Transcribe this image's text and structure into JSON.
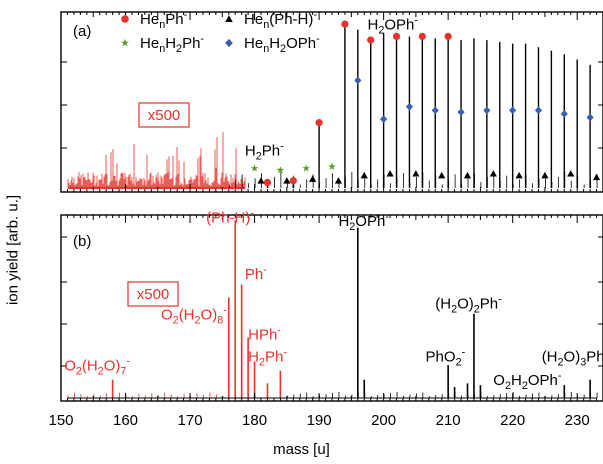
{
  "chart_data": {
    "type": "bar",
    "xlabel": "mass [u]",
    "ylabel": "ion yield [arb. u.]",
    "xlim": [
      150,
      234
    ],
    "x_ticks": [
      "150",
      "160",
      "170",
      "180",
      "190",
      "200",
      "210",
      "220",
      "230"
    ],
    "panels": [
      {
        "label": "(a)",
        "scale_box": {
          "text": "x500",
          "color": "#e8322b"
        },
        "legend": [
          {
            "text": "He",
            "sub": "n",
            "tail": "Ph",
            "sup": "-",
            "marker": "circle",
            "color": "#e8322b"
          },
          {
            "text": "He",
            "sub": "n",
            "tail": "(Ph-H)",
            "sup": "-",
            "marker": "triangle",
            "color": "#000000"
          },
          {
            "text": "He",
            "sub": "n",
            "tail": "H",
            "sub2": "2",
            "tail2": "Ph",
            "sup": "-",
            "marker": "star",
            "color": "#5aa02c"
          },
          {
            "text": "He",
            "sub": "n",
            "tail": "H",
            "sub2": "2",
            "tail2": "OPh",
            "sup": "-",
            "marker": "diamond",
            "color": "#3a5fb4"
          }
        ],
        "annotations": [
          {
            "text": "H",
            "sub": "2",
            "tail": "OPh",
            "sup": "-",
            "x": 197.5,
            "y": 0.9
          },
          {
            "text": "H",
            "sub": "2",
            "tail": "Ph",
            "sup": "-",
            "x": 178.5,
            "y": 0.185
          }
        ],
        "series": [
          {
            "marker": "circle",
            "color": "#e8322b",
            "x": [
              182,
              186,
              190,
              194,
              198,
              202,
              206,
              210
            ],
            "y": [
              0.02,
              0.03,
              0.36,
              0.92,
              0.83,
              0.85,
              0.85,
              0.85
            ]
          },
          {
            "marker": "triangle",
            "color": "#000000",
            "x": [
              181,
              185,
              189,
              193,
              197,
              201,
              205,
              209,
              213,
              217,
              221,
              225,
              229,
              233
            ],
            "y": [
              0.03,
              0.03,
              0.04,
              0.03,
              0.06,
              0.07,
              0.07,
              0.06,
              0.06,
              0.07,
              0.06,
              0.06,
              0.07,
              0.05
            ]
          },
          {
            "marker": "star",
            "color": "#5aa02c",
            "x": [
              180,
              184,
              188,
              192
            ],
            "y": [
              0.1,
              0.09,
              0.1,
              0.11
            ]
          },
          {
            "marker": "diamond",
            "color": "#3a5fb4",
            "x": [
              196,
              200,
              204,
              208,
              212,
              216,
              220,
              224,
              228,
              232
            ],
            "y": [
              0.6,
              0.38,
              0.45,
              0.43,
              0.42,
              0.43,
              0.43,
              0.43,
              0.41,
              0.39
            ]
          }
        ],
        "sticks": {
          "x": [
            194,
            196,
            198,
            200,
            202,
            204,
            206,
            208,
            210,
            212,
            214,
            216,
            218,
            220,
            222,
            224,
            226,
            228,
            230,
            232,
            190,
            186,
            182
          ],
          "y": [
            0.92,
            0.9,
            0.83,
            0.88,
            0.85,
            0.86,
            0.85,
            0.85,
            0.85,
            0.84,
            0.85,
            0.84,
            0.83,
            0.82,
            0.82,
            0.8,
            0.78,
            0.76,
            0.73,
            0.7,
            0.36,
            0.04,
            0.02
          ]
        }
      },
      {
        "label": "(b)",
        "scale_box": {
          "text": "x500",
          "color": "#e8322b"
        },
        "annotations": [
          {
            "text": "(Ph-H)",
            "sup": "-",
            "color": "#e8322b",
            "x": 172.5,
            "y": 0.96
          },
          {
            "text": "Ph",
            "sup": "-",
            "color": "#e8322b",
            "x": 178.5,
            "y": 0.65
          },
          {
            "text": "O",
            "sub": "2",
            "tail": "(H",
            "sub2": "2",
            "tail2": "O)",
            "sub3": "8",
            "sup": "-",
            "color": "#e8322b",
            "x": 165.5,
            "y": 0.43
          },
          {
            "text": "HPh",
            "sup": "-",
            "color": "#e8322b",
            "x": 179,
            "y": 0.32
          },
          {
            "text": "H",
            "sub": "2",
            "tail": "Ph",
            "sup": "-",
            "color": "#e8322b",
            "x": 179,
            "y": 0.2
          },
          {
            "text": "O",
            "sub": "2",
            "tail": "(H",
            "sub2": "2",
            "tail2": "O)",
            "sub3": "7",
            "sup": "-",
            "color": "#e8322b",
            "x": 150.5,
            "y": 0.15
          },
          {
            "text": "H",
            "sub": "2",
            "tail": "OPh",
            "sup": "-",
            "color": "#000000",
            "x": 193,
            "y": 0.94
          },
          {
            "text": "(H",
            "sub": "2",
            "tail": "O)",
            "sub2": "2",
            "tail2": "Ph",
            "sup": "-",
            "color": "#000000",
            "x": 208,
            "y": 0.49
          },
          {
            "text": "PhO",
            "sub": "2",
            "sup": "-",
            "color": "#000000",
            "x": 206.5,
            "y": 0.2
          },
          {
            "text": "O",
            "sub": "2",
            "tail": "H",
            "sub2": "2",
            "tail2": "OPh",
            "sup": "-",
            "color": "#000000",
            "x": 217,
            "y": 0.07
          },
          {
            "text": "(H",
            "sub": "2",
            "tail": "O)",
            "sub2": "3",
            "tail2": "Ph",
            "color": "#000000",
            "x": 224.5,
            "y": 0.2
          }
        ],
        "red_sticks": {
          "x": [
            158,
            176,
            177,
            178,
            179,
            180,
            182,
            184
          ],
          "y": [
            0.1,
            0.55,
            0.97,
            0.62,
            0.33,
            0.2,
            0.08,
            0.15
          ]
        },
        "black_sticks": {
          "x": [
            196,
            197,
            210,
            211,
            213,
            214,
            215,
            228,
            232
          ],
          "y": [
            0.93,
            0.1,
            0.18,
            0.06,
            0.08,
            0.46,
            0.07,
            0.07,
            0.1
          ]
        }
      }
    ]
  }
}
